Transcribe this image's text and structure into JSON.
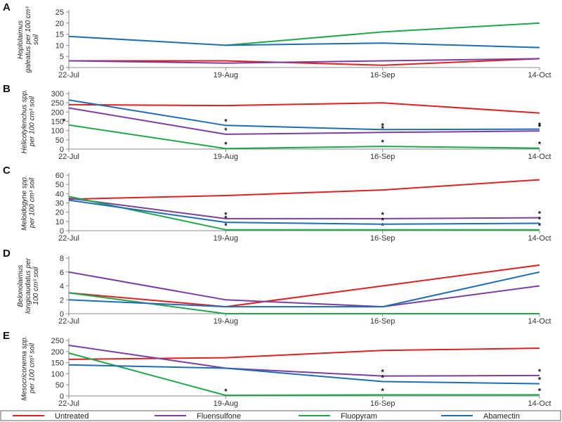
{
  "colors": {
    "Untreated": "#e02020",
    "Fluensulfone": "#7b3fa0",
    "Fluopyram": "#1fa84a",
    "Abamectin": "#1f6db5"
  },
  "legend": {
    "entries": [
      "Untreated",
      "Fluensulfone",
      "Fluopyram",
      "Abamectin"
    ],
    "placement": "bottom"
  },
  "chart_data": [
    {
      "type": "line",
      "panel": "A",
      "ylabel_lines": [
        "Hoplolaimus",
        "galeatus per 100 cm³",
        "soil"
      ],
      "categories": [
        "22-Jul",
        "19-Aug",
        "16-Sep",
        "14-Oct"
      ],
      "yticks": [
        0,
        5,
        10,
        15,
        20,
        25
      ],
      "ylim": [
        0,
        25
      ],
      "series": [
        {
          "name": "Untreated",
          "values": [
            3,
            3,
            1,
            4
          ],
          "stars": [
            false,
            false,
            false,
            false
          ]
        },
        {
          "name": "Fluensulfone",
          "values": [
            3,
            2,
            3,
            4
          ],
          "stars": [
            false,
            false,
            false,
            false
          ]
        },
        {
          "name": "Fluopyram",
          "values": [
            null,
            10,
            16,
            20
          ],
          "stars": [
            false,
            false,
            false,
            false
          ]
        },
        {
          "name": "Abamectin",
          "values": [
            14,
            10,
            11,
            9
          ],
          "stars": [
            false,
            false,
            false,
            false
          ]
        }
      ]
    },
    {
      "type": "line",
      "panel": "B",
      "ylabel_lines": [
        "Helicotylenchus spp.",
        "per 100 cm³ soil"
      ],
      "categories": [
        "22-Jul",
        "19-Aug",
        "16-Sep",
        "14-Oct"
      ],
      "yticks": [
        0,
        50,
        100,
        150,
        200,
        250,
        300
      ],
      "ylim": [
        0,
        300
      ],
      "series": [
        {
          "name": "Untreated",
          "values": [
            240,
            235,
            250,
            195
          ],
          "stars": [
            false,
            false,
            false,
            false
          ]
        },
        {
          "name": "Fluensulfone",
          "values": [
            222,
            80,
            90,
            98
          ],
          "stars": [
            false,
            true,
            true,
            true
          ]
        },
        {
          "name": "Fluopyram",
          "values": [
            130,
            3,
            15,
            5
          ],
          "stars": [
            true,
            true,
            true,
            true
          ]
        },
        {
          "name": "Abamectin",
          "values": [
            265,
            128,
            105,
            108
          ],
          "stars": [
            false,
            true,
            true,
            true
          ]
        }
      ]
    },
    {
      "type": "line",
      "panel": "C",
      "ylabel_lines": [
        "Meloidogyne spp.",
        "per 100 cm³ soil"
      ],
      "categories": [
        "22-Jul",
        "19-Aug",
        "16-Sep",
        "14-Oct"
      ],
      "yticks": [
        0,
        10,
        20,
        30,
        40,
        50,
        60
      ],
      "ylim": [
        0,
        60
      ],
      "series": [
        {
          "name": "Untreated",
          "values": [
            34,
            38,
            44,
            55
          ],
          "stars": [
            false,
            false,
            false,
            false
          ]
        },
        {
          "name": "Fluensulfone",
          "values": [
            35,
            13,
            13,
            14
          ],
          "stars": [
            false,
            true,
            true,
            true
          ]
        },
        {
          "name": "Fluopyram",
          "values": [
            37,
            1,
            1,
            1
          ],
          "stars": [
            false,
            true,
            true,
            true
          ]
        },
        {
          "name": "Abamectin",
          "values": [
            33,
            9,
            7,
            8
          ],
          "stars": [
            false,
            true,
            true,
            true
          ]
        }
      ]
    },
    {
      "type": "line",
      "panel": "D",
      "ylabel_lines": [
        "Belonolaimus",
        "longicaudatus per",
        "100 cm³ soil"
      ],
      "categories": [
        "22-Jul",
        "19-Aug",
        "16-Sep",
        "14-Oct"
      ],
      "yticks": [
        0,
        2,
        4,
        6,
        8
      ],
      "ylim": [
        0,
        8
      ],
      "series": [
        {
          "name": "Untreated",
          "values": [
            3,
            1,
            4,
            7
          ],
          "stars": [
            false,
            false,
            false,
            false
          ]
        },
        {
          "name": "Fluensulfone",
          "values": [
            6,
            2,
            1,
            4
          ],
          "stars": [
            false,
            false,
            false,
            false
          ]
        },
        {
          "name": "Fluopyram",
          "values": [
            3,
            0,
            0,
            0
          ],
          "stars": [
            false,
            false,
            false,
            false
          ]
        },
        {
          "name": "Abamectin",
          "values": [
            2,
            1,
            1,
            6
          ],
          "stars": [
            false,
            false,
            false,
            false
          ]
        }
      ]
    },
    {
      "type": "line",
      "panel": "E",
      "ylabel_lines": [
        "Mesocriconema spp.",
        "per 100 cm³ soil"
      ],
      "categories": [
        "22-Jul",
        "19-Aug",
        "16-Sep",
        "14-Oct"
      ],
      "yticks": [
        0,
        50,
        100,
        150,
        200,
        250
      ],
      "ylim": [
        0,
        250
      ],
      "series": [
        {
          "name": "Untreated",
          "values": [
            165,
            172,
            205,
            215
          ],
          "stars": [
            false,
            false,
            false,
            false
          ]
        },
        {
          "name": "Fluensulfone",
          "values": [
            228,
            125,
            90,
            92
          ],
          "stars": [
            false,
            false,
            true,
            true
          ]
        },
        {
          "name": "Fluopyram",
          "values": [
            193,
            3,
            5,
            5
          ],
          "stars": [
            false,
            true,
            true,
            true
          ]
        },
        {
          "name": "Abamectin",
          "values": [
            140,
            125,
            65,
            55
          ],
          "stars": [
            false,
            false,
            true,
            true
          ]
        }
      ]
    }
  ]
}
